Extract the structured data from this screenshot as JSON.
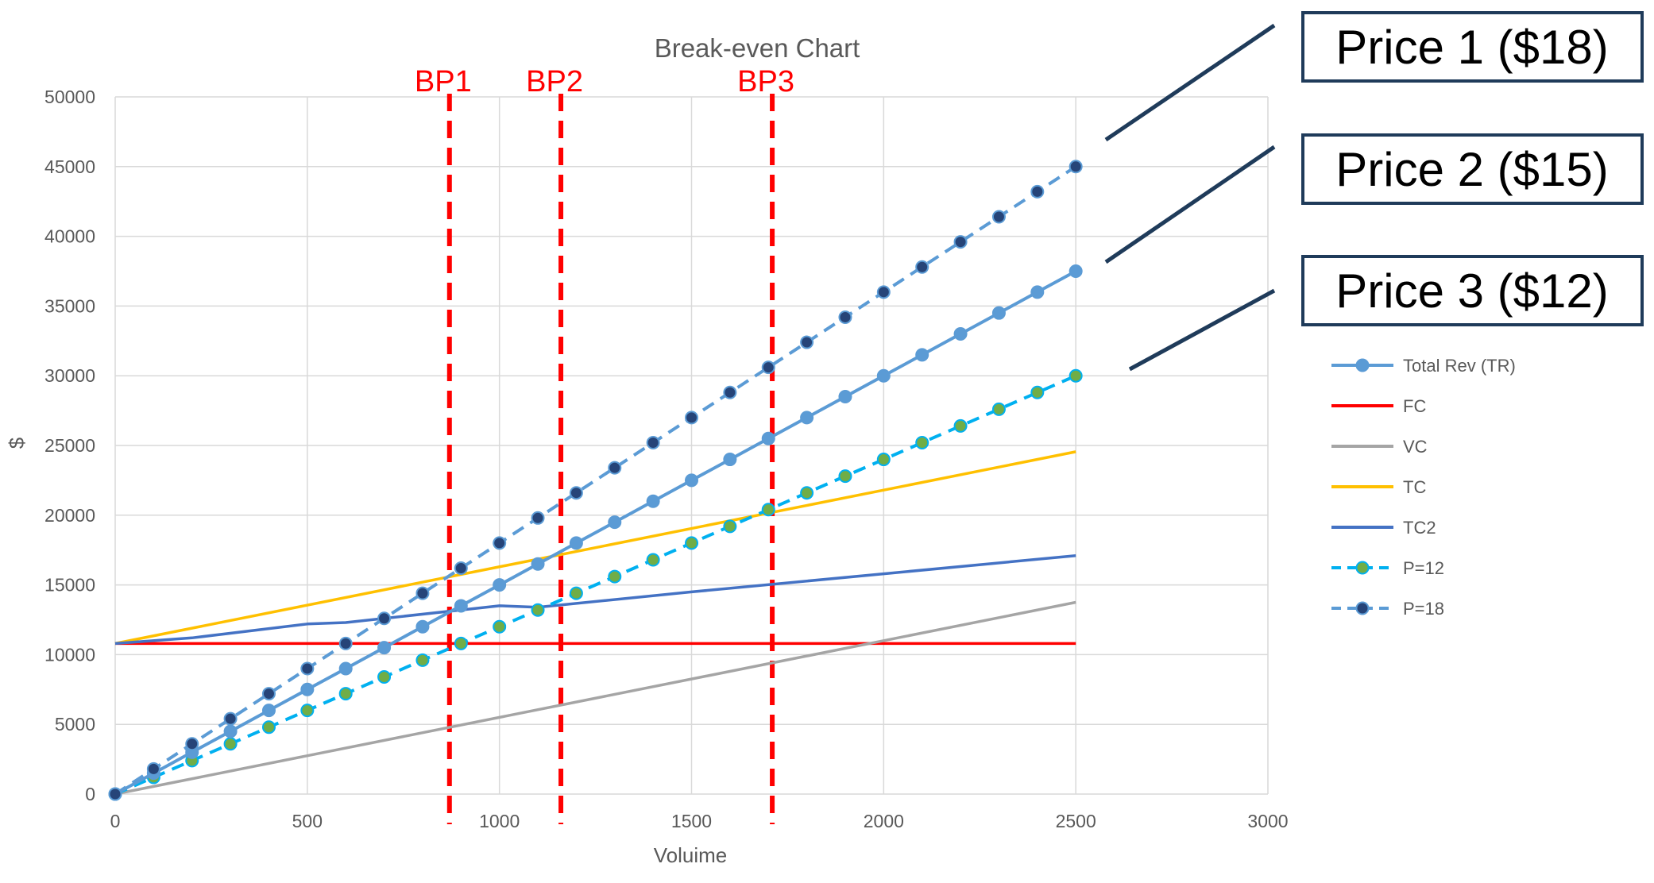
{
  "chart_data": {
    "type": "line",
    "title": "Break-even Chart",
    "xlabel": "Voluime",
    "ylabel": "$",
    "xlim": [
      0,
      3000
    ],
    "ylim": [
      0,
      50000
    ],
    "x_ticks": [
      "0",
      "500",
      "1000",
      "1500",
      "2000",
      "2500",
      "3000"
    ],
    "y_ticks": [
      "0",
      "5000",
      "10000",
      "15000",
      "20000",
      "25000",
      "30000",
      "35000",
      "40000",
      "45000",
      "50000"
    ],
    "grid": true,
    "legend_position": "right",
    "series": [
      {
        "name": "Total Rev (TR)",
        "color": "#5b9bd5",
        "style": "solid",
        "markers": true,
        "x": [
          0,
          100,
          200,
          300,
          400,
          500,
          600,
          700,
          800,
          900,
          1000,
          1100,
          1200,
          1300,
          1400,
          1500,
          1600,
          1700,
          1800,
          1900,
          2000,
          2100,
          2200,
          2300,
          2400,
          2500
        ],
        "y": [
          0,
          1500,
          3000,
          4500,
          6000,
          7500,
          9000,
          10500,
          12000,
          13500,
          15000,
          16500,
          18000,
          19500,
          21000,
          22500,
          24000,
          25500,
          27000,
          28500,
          30000,
          31500,
          33000,
          34500,
          36000,
          37500
        ]
      },
      {
        "name": "FC",
        "color": "#ff0000",
        "style": "solid",
        "markers": false,
        "x": [
          0,
          2500
        ],
        "y": [
          10800,
          10800
        ]
      },
      {
        "name": "VC",
        "color": "#a5a5a5",
        "style": "solid",
        "markers": false,
        "x": [
          0,
          2500
        ],
        "y": [
          0,
          13750
        ]
      },
      {
        "name": "TC",
        "color": "#ffc000",
        "style": "solid",
        "markers": false,
        "x": [
          0,
          2500
        ],
        "y": [
          10800,
          24550
        ]
      },
      {
        "name": "TC2",
        "color": "#4472c4",
        "style": "solid",
        "markers": false,
        "x": [
          0,
          200,
          500,
          600,
          1000,
          1100,
          1500,
          2000,
          2500
        ],
        "y": [
          10800,
          11200,
          12200,
          12300,
          13500,
          13400,
          14500,
          15800,
          17100
        ]
      },
      {
        "name": "P=12",
        "color": "#00b0f0",
        "marker_color": "#70ad47",
        "style": "dashed",
        "markers": true,
        "x": [
          0,
          100,
          200,
          300,
          400,
          500,
          600,
          700,
          800,
          900,
          1000,
          1100,
          1200,
          1300,
          1400,
          1500,
          1600,
          1700,
          1800,
          1900,
          2000,
          2100,
          2200,
          2300,
          2400,
          2500
        ],
        "y": [
          0,
          1200,
          2400,
          3600,
          4800,
          6000,
          7200,
          8400,
          9600,
          10800,
          12000,
          13200,
          14400,
          15600,
          16800,
          18000,
          19200,
          20400,
          21600,
          22800,
          24000,
          25200,
          26400,
          27600,
          28800,
          30000
        ]
      },
      {
        "name": "P=18",
        "color": "#5b9bd5",
        "marker_color": "#264478",
        "style": "dashed",
        "markers": true,
        "x": [
          0,
          100,
          200,
          300,
          400,
          500,
          600,
          700,
          800,
          900,
          1000,
          1100,
          1200,
          1300,
          1400,
          1500,
          1600,
          1700,
          1800,
          1900,
          2000,
          2100,
          2200,
          2300,
          2400,
          2500
        ],
        "y": [
          0,
          1800,
          3600,
          5400,
          7200,
          9000,
          10800,
          12600,
          14400,
          16200,
          18000,
          19800,
          21600,
          23400,
          25200,
          27000,
          28800,
          30600,
          32400,
          34200,
          36000,
          37800,
          39600,
          41400,
          43200,
          45000
        ]
      }
    ],
    "break_points": [
      {
        "label": "BP1",
        "x": 870
      },
      {
        "label": "BP2",
        "x": 1160
      },
      {
        "label": "BP3",
        "x": 1710
      }
    ],
    "annotations": [
      {
        "text": "Price 1 ($18)",
        "series": "P=18"
      },
      {
        "text": "Price 2 ($15)",
        "series": "Total Rev (TR)"
      },
      {
        "text": "Price 3 ($12)",
        "series": "P=12"
      }
    ],
    "colors": {
      "grid": "#d9d9d9",
      "break_point": "#ff0000",
      "annotation_box_border": "#1f3b5a",
      "annotation_pointer": "#1f3b5a"
    }
  }
}
